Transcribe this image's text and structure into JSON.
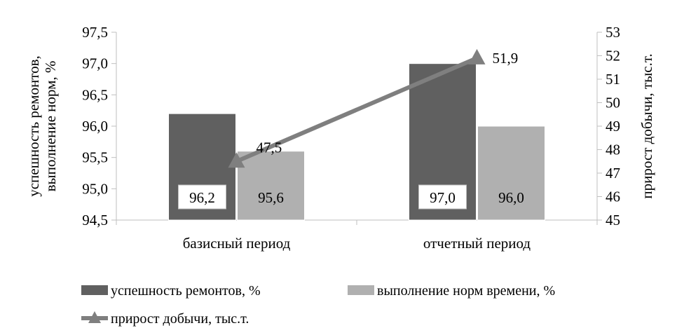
{
  "chart_data": {
    "type": "bar",
    "categories": [
      "базисный период",
      "отчетный период"
    ],
    "series": [
      {
        "name": "успешность ремонтов, %",
        "type": "bar",
        "axis": "left",
        "values": [
          96.2,
          97.0
        ],
        "labels": [
          "96,2",
          "97,0"
        ],
        "color": "#606060"
      },
      {
        "name": "выполнение норм времени, %",
        "type": "bar",
        "axis": "left",
        "values": [
          95.6,
          96.0
        ],
        "labels": [
          "95,6",
          "96,0"
        ],
        "color": "#b0b0b0"
      },
      {
        "name": "прирост добычи, тыс.т.",
        "type": "line",
        "marker": "triangle",
        "axis": "right",
        "values": [
          47.5,
          51.9
        ],
        "labels": [
          "47,5",
          "51,9"
        ],
        "color": "#7f7f7f"
      }
    ],
    "y_left": {
      "label_lines": [
        "успешность ремонтов,",
        "выполнение норм, %"
      ],
      "ylim": [
        94.5,
        97.5
      ],
      "ticks": [
        94.5,
        95.0,
        95.5,
        96.0,
        96.5,
        97.0,
        97.5
      ],
      "tick_labels": [
        "94,5",
        "95,0",
        "95,5",
        "96,0",
        "96,5",
        "97,0",
        "97,5"
      ]
    },
    "y_right": {
      "label": "прирост добычи, тыс.т.",
      "ylim": [
        45,
        53
      ],
      "ticks": [
        45,
        46,
        47,
        48,
        49,
        50,
        51,
        52,
        53
      ],
      "tick_labels": [
        "45",
        "46",
        "47",
        "48",
        "49",
        "50",
        "51",
        "52",
        "53"
      ]
    },
    "grid": false,
    "legend_position": "bottom"
  }
}
